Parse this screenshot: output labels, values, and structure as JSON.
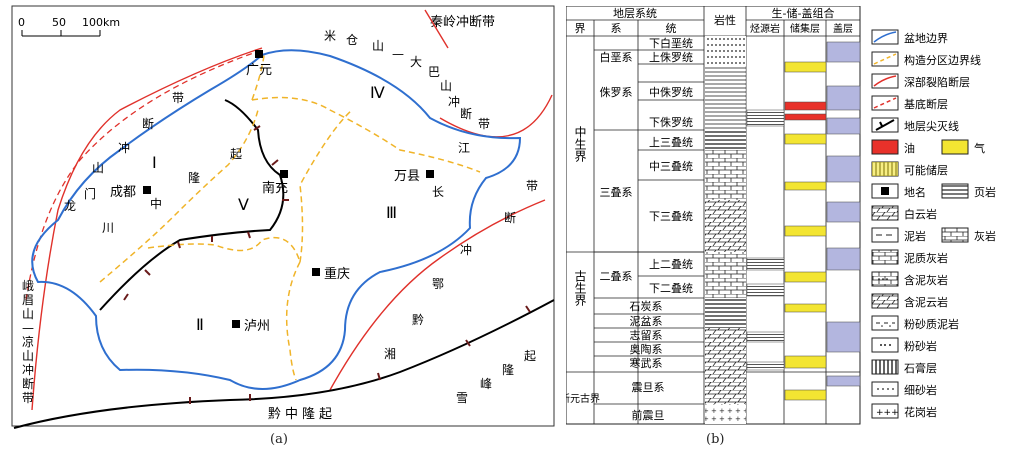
{
  "panel_a": {
    "caption": "(a)",
    "scale": {
      "zero": "0",
      "mid": "50",
      "end": "100km"
    },
    "fault_labels": {
      "qinling": "秦岭冲断带",
      "micang": [
        "米",
        "仓",
        "山",
        "—",
        "大",
        "巴",
        "山",
        "冲",
        "断",
        "带"
      ],
      "longmen": [
        "带",
        "断",
        "冲",
        "山",
        "门",
        "龙"
      ],
      "emei": [
        "峨",
        "眉",
        "山",
        "—",
        "凉",
        "山",
        "冲",
        "断",
        "带"
      ],
      "xuefeng": [
        "雪",
        "峰",
        "隆",
        "起"
      ],
      "qianzhong": "黔中隆起",
      "chuanzhong": [
        "川",
        "中",
        "隆",
        "起"
      ],
      "jiang_chang": [
        "江",
        "长"
      ],
      "chongduan_right": [
        "带",
        "断",
        "冲"
      ],
      "exiang": [
        "鄂",
        "黔",
        "湘"
      ]
    },
    "zones": [
      "Ⅰ",
      "Ⅱ",
      "Ⅲ",
      "Ⅳ",
      "Ⅴ"
    ],
    "cities": {
      "guangyuan": "广元",
      "chengdu": "成都",
      "nanchong": "南充",
      "wanxian": "万县",
      "chongqing": "重庆",
      "luzhou": "泸州"
    }
  },
  "panel_b": {
    "caption": "(b)",
    "header": {
      "system": "地层系统",
      "jie": "界",
      "xi": "系",
      "tong": "统",
      "lithology": "岩性",
      "combo": "生-储-盖组合",
      "source": "烃源岩",
      "reservoir": "储集层",
      "seal": "盖层"
    },
    "eras": [
      "中生界",
      "古生界",
      "新元古界"
    ],
    "systems": [
      "白垩系",
      "侏罗系",
      "三叠系",
      "二叠系",
      "石炭系",
      "泥盆系",
      "志留系",
      "奥陶系",
      "寒武系",
      "震旦系",
      "前震旦"
    ],
    "series": [
      "下白垩统",
      "上侏罗统",
      "中侏罗统",
      "下侏罗统",
      "上三叠统",
      "中三叠统",
      "下三叠统",
      "上二叠统",
      "下二叠统"
    ]
  },
  "legend": {
    "items": [
      "盆地边界",
      "构造分区边界线",
      "深部裂陷断层",
      "基底断层",
      "地层尖灭线",
      "油",
      "气",
      "可能储层",
      "地名",
      "页岩",
      "白云岩",
      "泥岩",
      "灰岩",
      "泥质灰岩",
      "含泥灰岩",
      "含泥云岩",
      "粉砂质泥岩",
      "粉砂岩",
      "石膏层",
      "细砂岩",
      "花岗岩"
    ],
    "colors": {
      "boundary": "#2f6fcf",
      "zone": "#f0b429",
      "deep_fault": "#e0312b",
      "oil": "#e8312a",
      "gas": "#f3e532",
      "seal": "#b3b6df",
      "possible": "#f3e532"
    }
  }
}
